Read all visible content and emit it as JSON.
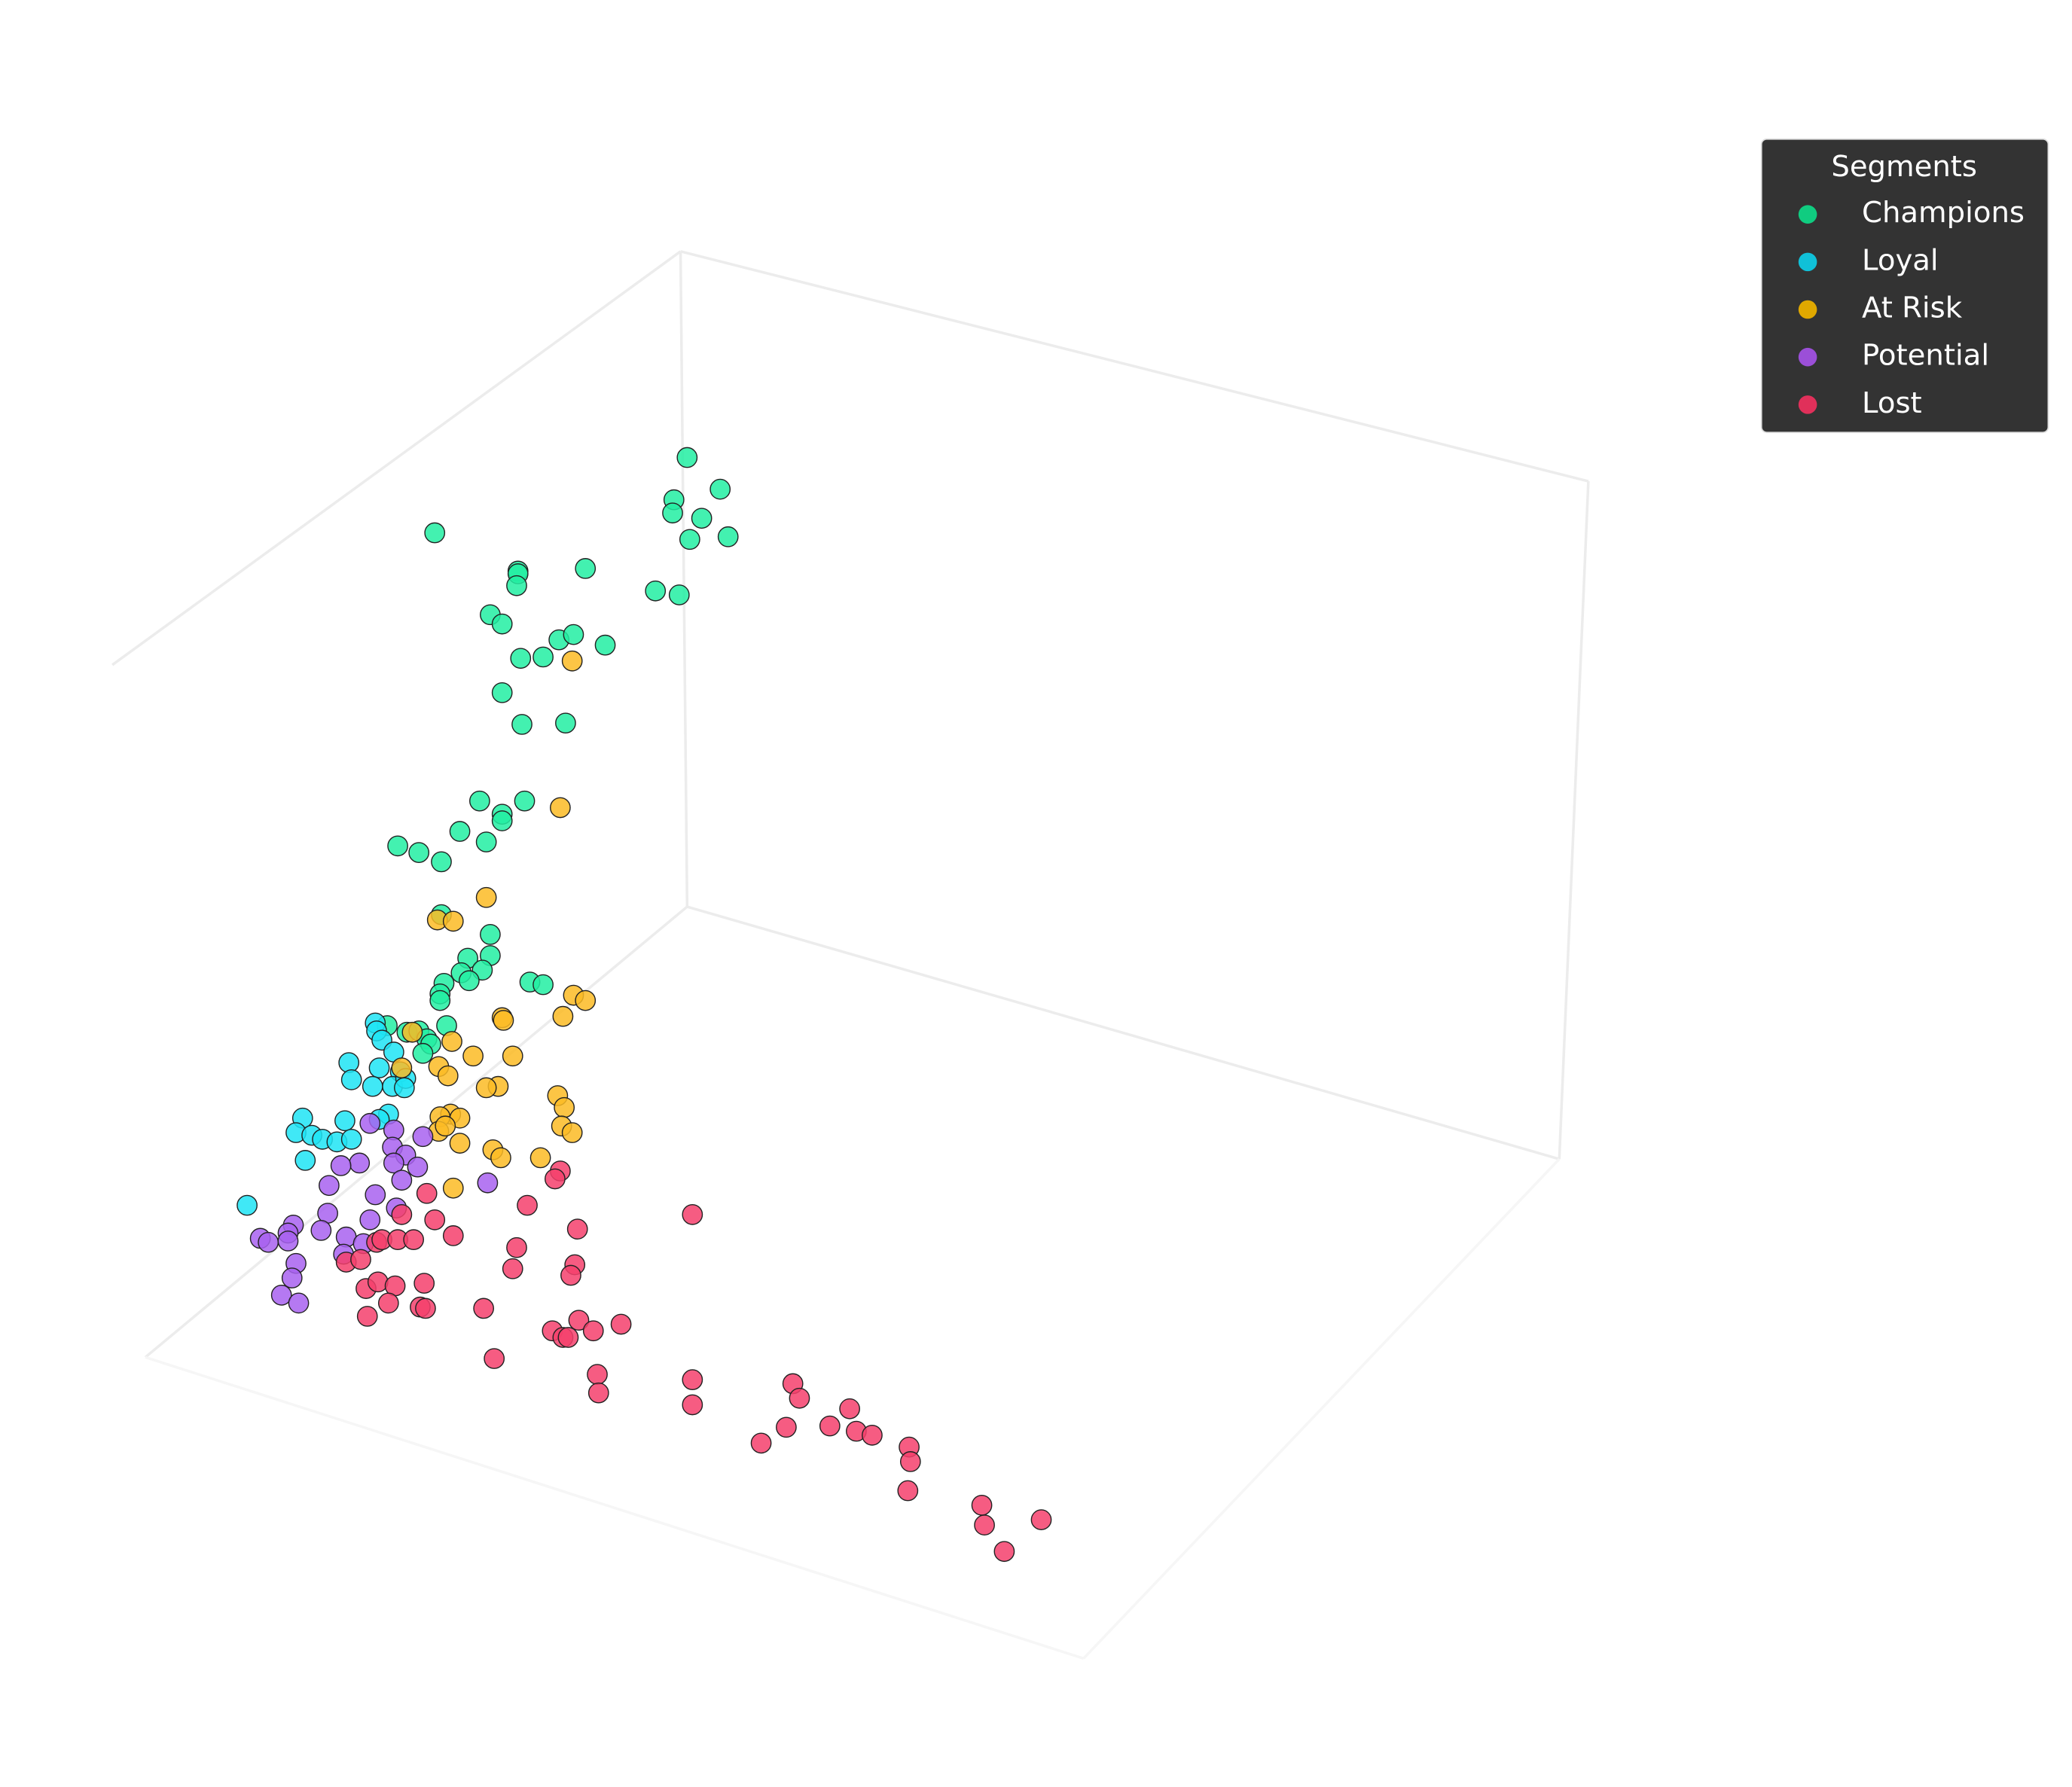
{
  "chart_data": {
    "type": "scatter",
    "legend_title": "Segments",
    "legend": "upper right",
    "xlim": [
      0,
      1568
    ],
    "ylim": [
      1352,
      0
    ],
    "series": [
      {
        "name": "Champions",
        "color": "#22eea2",
        "legend_color": "#10cc80",
        "x": [
          520,
          545,
          510,
          509,
          531,
          551,
          522,
          329,
          392,
          392,
          443,
          391,
          496,
          514,
          371,
          380,
          423,
          434,
          458,
          394,
          411,
          380,
          395,
          428,
          363,
          397,
          380,
          380,
          348,
          368,
          301,
          317,
          334,
          334,
          354,
          371,
          371,
          365,
          349,
          355,
          336,
          333,
          333,
          401,
          411,
          293,
          338,
          308,
          317,
          323,
          326,
          320
        ],
        "values": [
          346,
          370,
          378,
          388,
          392,
          406,
          408,
          403,
          432,
          434,
          430,
          443,
          447,
          450,
          465,
          472,
          484,
          480,
          488,
          498,
          497,
          524,
          548,
          547,
          606,
          606,
          616,
          621,
          629,
          637,
          640,
          645,
          652,
          692,
          725,
          723,
          707,
          734,
          736,
          742,
          744,
          752,
          757,
          743,
          745,
          776,
          776,
          781,
          780,
          786,
          790,
          797
        ]
      },
      {
        "name": "Loyal",
        "color": "#1ee4f4",
        "legend_color": "#10c0d8",
        "x": [
          284,
          285,
          289,
          298,
          264,
          287,
          303,
          266,
          282,
          297,
          307,
          306,
          294,
          287,
          229,
          261,
          224,
          236,
          244,
          255,
          266,
          231,
          187
        ],
        "values": [
          774,
          780,
          787,
          796,
          804,
          808,
          811,
          817,
          822,
          822,
          816,
          823,
          843,
          847,
          846,
          848,
          857,
          859,
          862,
          864,
          862,
          878,
          912
        ]
      },
      {
        "name": "At Risk",
        "color": "#fbbb24",
        "legend_color": "#e0a800",
        "x": [
          433,
          424,
          368,
          331,
          343,
          434,
          443,
          426,
          380,
          381,
          312,
          342,
          358,
          388,
          304,
          332,
          339,
          377,
          368,
          422,
          427,
          341,
          348,
          333,
          332,
          337,
          425,
          433,
          348,
          373,
          379,
          409,
          343
        ],
        "values": [
          500,
          611,
          679,
          696,
          697,
          753,
          757,
          769,
          770,
          772,
          781,
          788,
          799,
          799,
          808,
          807,
          814,
          822,
          823,
          829,
          838,
          843,
          846,
          845,
          856,
          852,
          852,
          857,
          865,
          870,
          876,
          876,
          899
        ]
      },
      {
        "name": "Potential",
        "color": "#a862f0",
        "legend_color": "#9b4fd8",
        "x": [
          280,
          298,
          320,
          297,
          307,
          272,
          258,
          298,
          316,
          304,
          249,
          369,
          284,
          300,
          248,
          280,
          222,
          218,
          243,
          197,
          203,
          218,
          262,
          275,
          260,
          224,
          221,
          213,
          226
        ],
        "values": [
          850,
          855,
          860,
          868,
          874,
          880,
          882,
          880,
          883,
          893,
          897,
          895,
          904,
          914,
          918,
          923,
          927,
          933,
          931,
          937,
          940,
          939,
          936,
          941,
          949,
          956,
          967,
          980,
          986
        ]
      },
      {
        "name": "Lost",
        "color": "#f5406c",
        "legend_color": "#e0305a",
        "x": [
          424,
          420,
          399,
          524,
          304,
          323,
          329,
          437,
          343,
          285,
          289,
          301,
          313,
          391,
          262,
          273,
          388,
          435,
          432,
          277,
          286,
          299,
          321,
          294,
          318,
          322,
          366,
          278,
          438,
          418,
          426,
          430,
          449,
          470,
          374,
          452,
          453,
          524,
          524,
          600,
          605,
          643,
          595,
          628,
          576,
          648,
          660,
          688,
          689,
          687,
          743,
          745,
          788,
          760
        ],
        "values": [
          886,
          892,
          912,
          919,
          919,
          903,
          923,
          930,
          935,
          940,
          938,
          938,
          938,
          944,
          955,
          953,
          960,
          957,
          965,
          975,
          970,
          973,
          971,
          986,
          989,
          990,
          990,
          996,
          999,
          1007,
          1012,
          1012,
          1007,
          1002,
          1028,
          1040,
          1054,
          1044,
          1063,
          1047,
          1058,
          1066,
          1080,
          1079,
          1092,
          1083,
          1086,
          1095,
          1106,
          1128,
          1139,
          1154,
          1150,
          1174
        ]
      }
    ]
  }
}
